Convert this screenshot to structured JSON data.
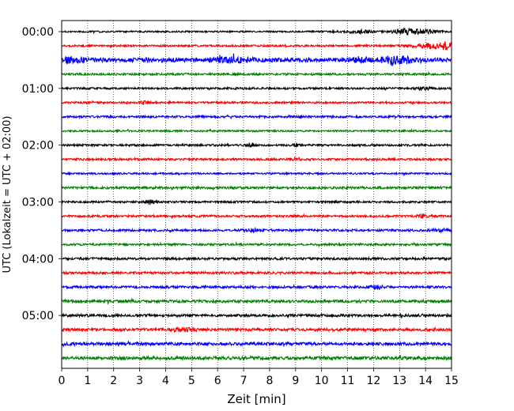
{
  "chart_data": {
    "type": "line",
    "title": "",
    "xlabel": "Zeit  [min]",
    "ylabel": "UTC (Lokalzeit = UTC + 02:00)",
    "xlim": [
      0,
      15
    ],
    "xticks": [
      "0",
      "1",
      "2",
      "3",
      "4",
      "5",
      "6",
      "7",
      "8",
      "9",
      "10",
      "11",
      "12",
      "13",
      "14",
      "15"
    ],
    "ytick_labels": [
      "00:00",
      "01:00",
      "02:00",
      "03:00",
      "04:00",
      "05:00"
    ],
    "ytick_hours": [
      0,
      1,
      2,
      3,
      4,
      5
    ],
    "traces_per_hour": 4,
    "trace_minutes": 15,
    "vertical_grid": "dotted",
    "color_cycle": [
      "#000000",
      "#ff0000",
      "#0000ff",
      "#008000"
    ],
    "series": [
      {
        "start": "00:00",
        "amplitude": 1.0,
        "events": [
          {
            "minute": 11.5,
            "amp": 2.0,
            "width": 0.6
          },
          {
            "minute": 13.3,
            "amp": 4.0,
            "width": 0.5
          },
          {
            "minute": 14.2,
            "amp": 1.6,
            "width": 0.4
          }
        ]
      },
      {
        "start": "00:15",
        "amplitude": 1.2,
        "events": [
          {
            "minute": 14.7,
            "amp": 4.5,
            "width": 0.5
          },
          {
            "minute": 13.9,
            "amp": 2.0,
            "width": 0.5
          }
        ]
      },
      {
        "start": "00:30",
        "amplitude": 2.6,
        "events": [
          {
            "minute": 0.3,
            "amp": 2.5,
            "width": 0.5
          },
          {
            "minute": 6.6,
            "amp": 2.0,
            "width": 0.8
          },
          {
            "minute": 11.4,
            "amp": 2.5,
            "width": 0.4
          },
          {
            "minute": 12.9,
            "amp": 4.0,
            "width": 0.6
          }
        ]
      },
      {
        "start": "00:45",
        "amplitude": 1.3,
        "events": []
      },
      {
        "start": "01:00",
        "amplitude": 1.2,
        "events": [
          {
            "minute": 13.9,
            "amp": 1.8,
            "width": 0.3
          }
        ]
      },
      {
        "start": "01:15",
        "amplitude": 1.2,
        "events": [
          {
            "minute": 3.2,
            "amp": 2.0,
            "width": 0.2
          }
        ]
      },
      {
        "start": "01:30",
        "amplitude": 1.3,
        "events": []
      },
      {
        "start": "01:45",
        "amplitude": 1.1,
        "events": []
      },
      {
        "start": "02:00",
        "amplitude": 1.2,
        "events": [
          {
            "minute": 7.3,
            "amp": 2.0,
            "width": 0.15
          },
          {
            "minute": 9.0,
            "amp": 2.0,
            "width": 0.1
          }
        ]
      },
      {
        "start": "02:15",
        "amplitude": 1.3,
        "events": [
          {
            "minute": 9.0,
            "amp": 1.6,
            "width": 0.2
          }
        ]
      },
      {
        "start": "02:30",
        "amplitude": 1.1,
        "events": []
      },
      {
        "start": "02:45",
        "amplitude": 1.5,
        "events": []
      },
      {
        "start": "03:00",
        "amplitude": 1.2,
        "events": [
          {
            "minute": 3.4,
            "amp": 1.6,
            "width": 0.2
          }
        ]
      },
      {
        "start": "03:15",
        "amplitude": 1.3,
        "events": [
          {
            "minute": 13.9,
            "amp": 1.8,
            "width": 0.2
          }
        ]
      },
      {
        "start": "03:30",
        "amplitude": 1.4,
        "events": [
          {
            "minute": 7.4,
            "amp": 1.5,
            "width": 0.3
          },
          {
            "minute": 14.6,
            "amp": 1.4,
            "width": 0.3
          }
        ]
      },
      {
        "start": "03:45",
        "amplitude": 1.3,
        "events": []
      },
      {
        "start": "04:00",
        "amplitude": 1.5,
        "events": []
      },
      {
        "start": "04:15",
        "amplitude": 1.5,
        "events": []
      },
      {
        "start": "04:30",
        "amplitude": 1.5,
        "events": [
          {
            "minute": 12.1,
            "amp": 1.6,
            "width": 0.3
          }
        ]
      },
      {
        "start": "04:45",
        "amplitude": 1.7,
        "events": []
      },
      {
        "start": "05:00",
        "amplitude": 1.6,
        "events": []
      },
      {
        "start": "05:15",
        "amplitude": 1.7,
        "events": [
          {
            "minute": 4.7,
            "amp": 1.5,
            "width": 0.5
          }
        ]
      },
      {
        "start": "05:30",
        "amplitude": 1.9,
        "events": []
      },
      {
        "start": "05:45",
        "amplitude": 2.0,
        "events": []
      }
    ]
  }
}
